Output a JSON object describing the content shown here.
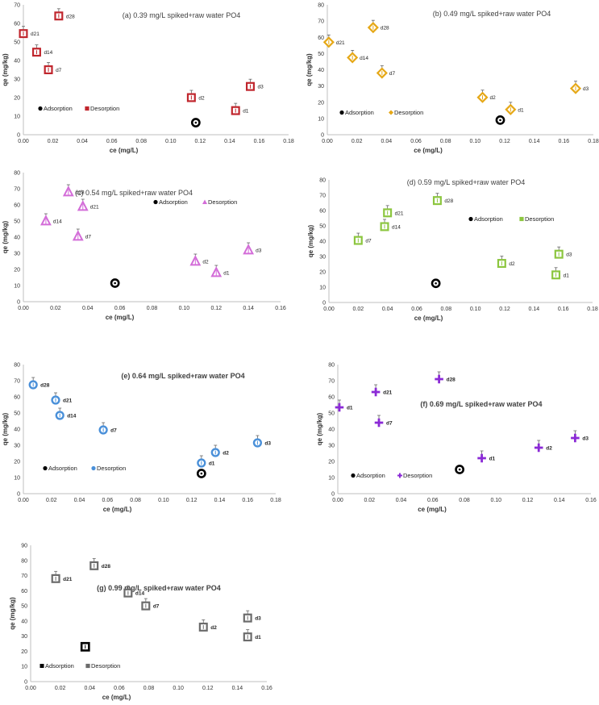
{
  "chart_data": [
    {
      "id": "a",
      "type": "scatter",
      "title": "(a) 0.39 mg/L spiked+raw water PO4",
      "title_bold": false,
      "xlabel": "ce (mg/L)",
      "ylabel": "qe (mg/kg)",
      "xlim": [
        0,
        0.18
      ],
      "x_step": 0.02,
      "ylim": [
        0,
        70
      ],
      "y_step": 10,
      "marker": "square",
      "color": "#c0262d",
      "adsorption": {
        "name": "Adsorption",
        "x": 0.117,
        "y": 6.5
      },
      "desorption": {
        "name": "Desorption",
        "points": [
          {
            "label": "d1",
            "x": 0.144,
            "y": 13
          },
          {
            "label": "d2",
            "x": 0.114,
            "y": 20
          },
          {
            "label": "d3",
            "x": 0.154,
            "y": 26
          },
          {
            "label": "d7",
            "x": 0.017,
            "y": 35
          },
          {
            "label": "d14",
            "x": 0.009,
            "y": 44.5
          },
          {
            "label": "d21",
            "x": 0.0,
            "y": 54.5
          },
          {
            "label": "d28",
            "x": 0.024,
            "y": 64
          }
        ]
      }
    },
    {
      "id": "b",
      "type": "scatter",
      "title": "(b) 0.49 mg/L spiked+raw water PO4",
      "title_bold": false,
      "xlabel": "ce (mg/L)",
      "ylabel": "qe (mg/kg)",
      "xlim": [
        0,
        0.18
      ],
      "x_step": 0.02,
      "ylim": [
        0,
        80
      ],
      "y_step": 10,
      "marker": "diamond",
      "color": "#e6a817",
      "adsorption": {
        "name": "Adsorption",
        "x": 0.117,
        "y": 9
      },
      "desorption": {
        "name": "Desorption",
        "points": [
          {
            "label": "d1",
            "x": 0.124,
            "y": 15.5
          },
          {
            "label": "d2",
            "x": 0.105,
            "y": 23
          },
          {
            "label": "d3",
            "x": 0.168,
            "y": 28.5
          },
          {
            "label": "d7",
            "x": 0.037,
            "y": 38
          },
          {
            "label": "d14",
            "x": 0.017,
            "y": 47.5
          },
          {
            "label": "d21",
            "x": 0.001,
            "y": 57
          },
          {
            "label": "d28",
            "x": 0.031,
            "y": 66
          }
        ]
      }
    },
    {
      "id": "c",
      "type": "scatter",
      "title": "(c) 0.54 mg/L spiked+raw water PO4",
      "title_bold": false,
      "xlabel": "ce (mg/L)",
      "ylabel": "qe (mg/kg)",
      "xlim": [
        0,
        0.16
      ],
      "x_step": 0.02,
      "ylim": [
        0,
        80
      ],
      "y_step": 10,
      "marker": "triangle",
      "color": "#d36cd8",
      "adsorption": {
        "name": "Adsorption",
        "x": 0.057,
        "y": 11.5
      },
      "desorption": {
        "name": "Desorption",
        "points": [
          {
            "label": "d1",
            "x": 0.12,
            "y": 18
          },
          {
            "label": "d2",
            "x": 0.107,
            "y": 25
          },
          {
            "label": "d3",
            "x": 0.14,
            "y": 32
          },
          {
            "label": "d7",
            "x": 0.034,
            "y": 40.5
          },
          {
            "label": "d14",
            "x": 0.014,
            "y": 50
          },
          {
            "label": "d21",
            "x": 0.037,
            "y": 59
          },
          {
            "label": "d28",
            "x": 0.028,
            "y": 68
          }
        ]
      }
    },
    {
      "id": "d",
      "type": "scatter",
      "title": "(d) 0.59 mg/L spiked+raw water PO4",
      "title_bold": false,
      "xlabel": "ce (mg/L)",
      "ylabel": "qe (mg/kg)",
      "xlim": [
        0,
        0.18
      ],
      "x_step": 0.02,
      "ylim": [
        0,
        80
      ],
      "y_step": 10,
      "marker": "square",
      "color": "#8cc63f",
      "adsorption": {
        "name": "Adsorption",
        "x": 0.073,
        "y": 12.5
      },
      "desorption": {
        "name": "Desorption",
        "points": [
          {
            "label": "d1",
            "x": 0.155,
            "y": 18
          },
          {
            "label": "d2",
            "x": 0.118,
            "y": 25.5
          },
          {
            "label": "d3",
            "x": 0.157,
            "y": 31.5
          },
          {
            "label": "d7",
            "x": 0.02,
            "y": 40.5
          },
          {
            "label": "d14",
            "x": 0.038,
            "y": 49.5
          },
          {
            "label": "d21",
            "x": 0.04,
            "y": 58.5
          },
          {
            "label": "d28",
            "x": 0.074,
            "y": 66.5
          }
        ]
      }
    },
    {
      "id": "e",
      "type": "scatter",
      "title": "(e) 0.64 mg/L spiked+raw water PO4",
      "title_bold": true,
      "xlabel": "ce (mg/L)",
      "ylabel": "qe (mg/kg)",
      "xlim": [
        0,
        0.18
      ],
      "x_step": 0.02,
      "ylim": [
        0,
        80
      ],
      "y_step": 10,
      "marker": "circle",
      "color": "#4a90d9",
      "adsorption": {
        "name": "Adsorption",
        "x": 0.127,
        "y": 12.5
      },
      "desorption": {
        "name": "Desorption",
        "points": [
          {
            "label": "d1",
            "x": 0.127,
            "y": 19
          },
          {
            "label": "d2",
            "x": 0.137,
            "y": 25.5
          },
          {
            "label": "d3",
            "x": 0.167,
            "y": 31.5
          },
          {
            "label": "d7",
            "x": 0.057,
            "y": 39.5
          },
          {
            "label": "d14",
            "x": 0.026,
            "y": 48.5
          },
          {
            "label": "d21",
            "x": 0.023,
            "y": 58
          },
          {
            "label": "d28",
            "x": 0.007,
            "y": 67.5
          }
        ]
      }
    },
    {
      "id": "f",
      "type": "scatter",
      "title": "(f) 0.69 mg/L spiked+raw water PO4",
      "title_bold": true,
      "xlabel": "ce (mg/L)",
      "ylabel": "qe (mg/kg)",
      "xlim": [
        0,
        0.16
      ],
      "x_step": 0.02,
      "ylim": [
        0,
        80
      ],
      "y_step": 10,
      "marker": "cross",
      "color": "#8b2ad6",
      "adsorption": {
        "name": "Adsorption",
        "x": 0.077,
        "y": 15
      },
      "desorption": {
        "name": "Desorption",
        "points": [
          {
            "label": "d1",
            "x": 0.091,
            "y": 22
          },
          {
            "label": "d2",
            "x": 0.127,
            "y": 28.5
          },
          {
            "label": "d3",
            "x": 0.15,
            "y": 34.5
          },
          {
            "label": "d7",
            "x": 0.026,
            "y": 44
          },
          {
            "label": "d1",
            "x": 0.001,
            "y": 53.5
          },
          {
            "label": "d21",
            "x": 0.024,
            "y": 63
          },
          {
            "label": "d28",
            "x": 0.064,
            "y": 71
          }
        ]
      }
    },
    {
      "id": "g",
      "type": "scatter",
      "title": "(g) 0.99 mg/L spiked+raw water PO4",
      "title_bold": true,
      "xlabel": "ce (mg/L)",
      "ylabel": "qe (mg/kg)",
      "xlim": [
        0,
        0.16
      ],
      "x_step": 0.02,
      "ylim": [
        0,
        90
      ],
      "y_step": 10,
      "marker": "square",
      "color": "#6b6b6b",
      "adsorption": {
        "name": "Adsorption",
        "x": 0.037,
        "y": 23
      },
      "desorption": {
        "name": "Desorption",
        "points": [
          {
            "label": "d1",
            "x": 0.147,
            "y": 29.5
          },
          {
            "label": "d2",
            "x": 0.117,
            "y": 36
          },
          {
            "label": "d3",
            "x": 0.147,
            "y": 42
          },
          {
            "label": "d7",
            "x": 0.078,
            "y": 50
          },
          {
            "label": "d14",
            "x": 0.066,
            "y": 58.5
          },
          {
            "label": "d21",
            "x": 0.017,
            "y": 68
          },
          {
            "label": "d28",
            "x": 0.043,
            "y": 76.5
          }
        ]
      }
    }
  ]
}
